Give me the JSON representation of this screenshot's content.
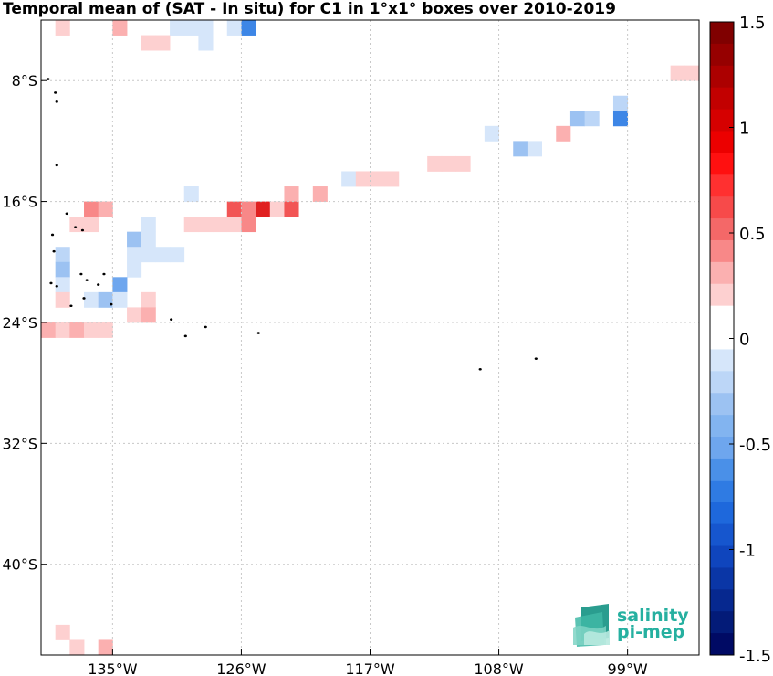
{
  "title": "Temporal mean of (SAT - In situ) for C1 in 1°x1° boxes over 2010-2019",
  "map": {
    "lon_range": [
      -140,
      -94
    ],
    "lat_range": [
      -46,
      -4
    ],
    "lon_ticks": [
      {
        "value": -135,
        "label": "135°W"
      },
      {
        "value": -126,
        "label": "126°W"
      },
      {
        "value": -117,
        "label": "117°W"
      },
      {
        "value": -108,
        "label": "108°W"
      },
      {
        "value": -99,
        "label": "99°W"
      }
    ],
    "lat_ticks": [
      {
        "value": -8,
        "label": "8°S"
      },
      {
        "value": -16,
        "label": "16°S"
      },
      {
        "value": -24,
        "label": "24°S"
      },
      {
        "value": -32,
        "label": "32°S"
      },
      {
        "value": -40,
        "label": "40°S"
      }
    ],
    "grid": true,
    "colors": {
      "pos1": "#fdd0d0",
      "pos2": "#fbb0b0",
      "pos3": "#f88888",
      "pos4": "#f25555",
      "pos5": "#e02020",
      "neg1": "#d6e6fa",
      "neg2": "#bcd6f7",
      "neg3": "#9cc2f2",
      "neg4": "#6ea6ee",
      "neg5": "#3d86e6"
    },
    "cells": [
      {
        "lon": -139,
        "lat": -4,
        "v": 0.15
      },
      {
        "lon": -135,
        "lat": -4,
        "v": 0.3
      },
      {
        "lon": -131,
        "lat": -4,
        "v": -0.1
      },
      {
        "lon": -130,
        "lat": -4,
        "v": -0.1
      },
      {
        "lon": -129,
        "lat": -4,
        "v": -0.1
      },
      {
        "lon": -127,
        "lat": -4,
        "v": -0.1
      },
      {
        "lon": -126,
        "lat": -4,
        "v": -0.5
      },
      {
        "lon": -133,
        "lat": -5,
        "v": 0.15
      },
      {
        "lon": -132,
        "lat": -5,
        "v": 0.15
      },
      {
        "lon": -129,
        "lat": -5,
        "v": -0.1
      },
      {
        "lon": -96,
        "lat": -7,
        "v": 0.15
      },
      {
        "lon": -95,
        "lat": -7,
        "v": 0.15
      },
      {
        "lon": -100,
        "lat": -9,
        "v": -0.15
      },
      {
        "lon": -103,
        "lat": -10,
        "v": -0.3
      },
      {
        "lon": -102,
        "lat": -10,
        "v": -0.15
      },
      {
        "lon": -100,
        "lat": -10,
        "v": -0.55
      },
      {
        "lon": -109,
        "lat": -11,
        "v": -0.1
      },
      {
        "lon": -104,
        "lat": -11,
        "v": 0.3
      },
      {
        "lon": -107,
        "lat": -12,
        "v": -0.3
      },
      {
        "lon": -106,
        "lat": -12,
        "v": -0.1
      },
      {
        "lon": -113,
        "lat": -13,
        "v": 0.15
      },
      {
        "lon": -112,
        "lat": -13,
        "v": 0.15
      },
      {
        "lon": -111,
        "lat": -13,
        "v": 0.15
      },
      {
        "lon": -119,
        "lat": -14,
        "v": -0.1
      },
      {
        "lon": -118,
        "lat": -14,
        "v": 0.15
      },
      {
        "lon": -117,
        "lat": -14,
        "v": 0.15
      },
      {
        "lon": -116,
        "lat": -14,
        "v": 0.15
      },
      {
        "lon": -130,
        "lat": -15,
        "v": -0.1
      },
      {
        "lon": -123,
        "lat": -15,
        "v": 0.3
      },
      {
        "lon": -121,
        "lat": -15,
        "v": 0.3
      },
      {
        "lon": -137,
        "lat": -16,
        "v": 0.5
      },
      {
        "lon": -136,
        "lat": -16,
        "v": 0.3
      },
      {
        "lon": -127,
        "lat": -16,
        "v": 0.7
      },
      {
        "lon": -126,
        "lat": -16,
        "v": 0.5
      },
      {
        "lon": -125,
        "lat": -16,
        "v": 0.9
      },
      {
        "lon": -124,
        "lat": -16,
        "v": 0.15
      },
      {
        "lon": -123,
        "lat": -16,
        "v": 0.6
      },
      {
        "lon": -138,
        "lat": -17,
        "v": 0.15
      },
      {
        "lon": -137,
        "lat": -17,
        "v": 0.15
      },
      {
        "lon": -133,
        "lat": -17,
        "v": -0.1
      },
      {
        "lon": -130,
        "lat": -17,
        "v": 0.15
      },
      {
        "lon": -129,
        "lat": -17,
        "v": 0.15
      },
      {
        "lon": -128,
        "lat": -17,
        "v": 0.15
      },
      {
        "lon": -127,
        "lat": -17,
        "v": 0.15
      },
      {
        "lon": -126,
        "lat": -17,
        "v": 0.5
      },
      {
        "lon": -134,
        "lat": -18,
        "v": -0.3
      },
      {
        "lon": -133,
        "lat": -18,
        "v": -0.1
      },
      {
        "lon": -139,
        "lat": -19,
        "v": -0.15
      },
      {
        "lon": -134,
        "lat": -19,
        "v": -0.1
      },
      {
        "lon": -133,
        "lat": -19,
        "v": -0.1
      },
      {
        "lon": -132,
        "lat": -19,
        "v": -0.1
      },
      {
        "lon": -131,
        "lat": -19,
        "v": -0.1
      },
      {
        "lon": -139,
        "lat": -20,
        "v": -0.3
      },
      {
        "lon": -134,
        "lat": -20,
        "v": -0.1
      },
      {
        "lon": -139,
        "lat": -21,
        "v": -0.1
      },
      {
        "lon": -135,
        "lat": -21,
        "v": -0.45
      },
      {
        "lon": -139,
        "lat": -22,
        "v": 0.15
      },
      {
        "lon": -137,
        "lat": -22,
        "v": -0.1
      },
      {
        "lon": -136,
        "lat": -22,
        "v": -0.3
      },
      {
        "lon": -135,
        "lat": -22,
        "v": -0.1
      },
      {
        "lon": -133,
        "lat": -22,
        "v": 0.15
      },
      {
        "lon": -134,
        "lat": -23,
        "v": 0.15
      },
      {
        "lon": -133,
        "lat": -23,
        "v": 0.3
      },
      {
        "lon": -140,
        "lat": -24,
        "v": 0.3
      },
      {
        "lon": -139,
        "lat": -24,
        "v": 0.15
      },
      {
        "lon": -138,
        "lat": -24,
        "v": 0.3
      },
      {
        "lon": -137,
        "lat": -24,
        "v": 0.15
      },
      {
        "lon": -136,
        "lat": -24,
        "v": 0.15
      },
      {
        "lon": -139,
        "lat": -44,
        "v": 0.15
      },
      {
        "lon": -138,
        "lat": -45,
        "v": 0.15
      },
      {
        "lon": -136,
        "lat": -45,
        "v": 0.3
      }
    ],
    "islands": [
      {
        "lon": -139.5,
        "lat": -7.9
      },
      {
        "lon": -139.0,
        "lat": -8.8
      },
      {
        "lon": -138.9,
        "lat": -9.4
      },
      {
        "lon": -138.9,
        "lat": -13.6
      },
      {
        "lon": -138.2,
        "lat": -16.8
      },
      {
        "lon": -137.6,
        "lat": -17.7
      },
      {
        "lon": -137.1,
        "lat": -17.9
      },
      {
        "lon": -139.2,
        "lat": -18.2
      },
      {
        "lon": -139.1,
        "lat": -19.3
      },
      {
        "lon": -137.2,
        "lat": -20.8
      },
      {
        "lon": -136.8,
        "lat": -21.2
      },
      {
        "lon": -136.0,
        "lat": -21.5
      },
      {
        "lon": -135.6,
        "lat": -20.8
      },
      {
        "lon": -139.3,
        "lat": -21.4
      },
      {
        "lon": -138.9,
        "lat": -21.6
      },
      {
        "lon": -137.0,
        "lat": -22.4
      },
      {
        "lon": -135.1,
        "lat": -22.8
      },
      {
        "lon": -137.9,
        "lat": -22.9
      },
      {
        "lon": -130.9,
        "lat": -23.8
      },
      {
        "lon": -128.5,
        "lat": -24.3
      },
      {
        "lon": -129.9,
        "lat": -24.9
      },
      {
        "lon": -124.8,
        "lat": -24.7
      },
      {
        "lon": -109.3,
        "lat": -27.1
      },
      {
        "lon": -105.4,
        "lat": -26.4
      }
    ]
  },
  "colorbar": {
    "min": -1.5,
    "max": 1.5,
    "tick_labels": [
      {
        "value": 1.5,
        "label": "1.5"
      },
      {
        "value": 1,
        "label": "1"
      },
      {
        "value": 0.5,
        "label": "0.5"
      },
      {
        "value": 0,
        "label": "0"
      },
      {
        "value": -0.5,
        "label": "-0.5"
      },
      {
        "value": -1,
        "label": "-1"
      },
      {
        "value": -1.5,
        "label": "-1.5"
      }
    ],
    "colors_top_to_bottom": [
      "#800000",
      "#960000",
      "#ac0000",
      "#c20000",
      "#d60000",
      "#ec0000",
      "#ff1010",
      "#ff3030",
      "#f74a4a",
      "#f46868",
      "#f88888",
      "#fbb0b0",
      "#fdd0d0",
      "#ffffff",
      "#ffffff",
      "#d6e6fa",
      "#bcd6f7",
      "#9cc2f2",
      "#82b4f0",
      "#6ea6ee",
      "#4a90e8",
      "#2f7be3",
      "#1e68dc",
      "#1656ce",
      "#0f45bd",
      "#0a36a6",
      "#06288f",
      "#031b78",
      "#000a64"
    ]
  },
  "logo": {
    "line1": "salinity",
    "line2": "pi-mep"
  }
}
